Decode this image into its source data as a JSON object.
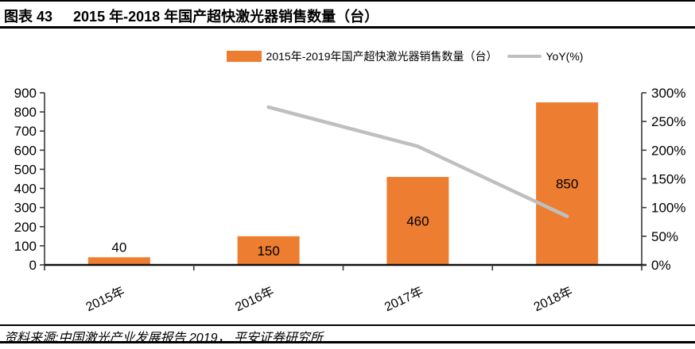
{
  "header": {
    "figure_label": "图表 43",
    "figure_title": "2015 年-2018 年国产超快激光器销售数量（台）"
  },
  "legend": {
    "bars_label": "2015年-2019年国产超快激光器销售数量（台）",
    "line_label": "YoY(%)"
  },
  "footer": {
    "source_note": "资料来源:中国激光产业发展报告 2019， 平安证券研究所"
  },
  "colors": {
    "bar": "#ED7D31",
    "line": "#BFBFBF",
    "axis": "#3a3a3a",
    "baseline": "#111111",
    "text": "#000000"
  },
  "chart_data": {
    "type": "bar",
    "combo": "bar-with-line-overlay",
    "title": "2015 年-2018 年国产超快激光器销售数量（台）",
    "categories": [
      "2015年",
      "2016年",
      "2017年",
      "2018年"
    ],
    "series": [
      {
        "name": "2015年-2019年国产超快激光器销售数量（台）",
        "type": "bar",
        "axis": "left",
        "values": [
          40,
          150,
          460,
          850
        ],
        "data_labels": [
          "40",
          "150",
          "460",
          "850"
        ]
      },
      {
        "name": "YoY(%)",
        "type": "line",
        "axis": "right",
        "values": [
          null,
          275,
          206.7,
          84.8
        ]
      }
    ],
    "left_axis": {
      "min": 0,
      "max": 900,
      "step": 100,
      "tick_labels": [
        "0",
        "100",
        "200",
        "300",
        "400",
        "500",
        "600",
        "700",
        "800",
        "900"
      ]
    },
    "right_axis": {
      "min": 0,
      "max": 300,
      "step": 50,
      "tick_labels": [
        "0%",
        "50%",
        "100%",
        "150%",
        "200%",
        "250%",
        "300%"
      ]
    },
    "legend_position": "top",
    "grid": false
  }
}
